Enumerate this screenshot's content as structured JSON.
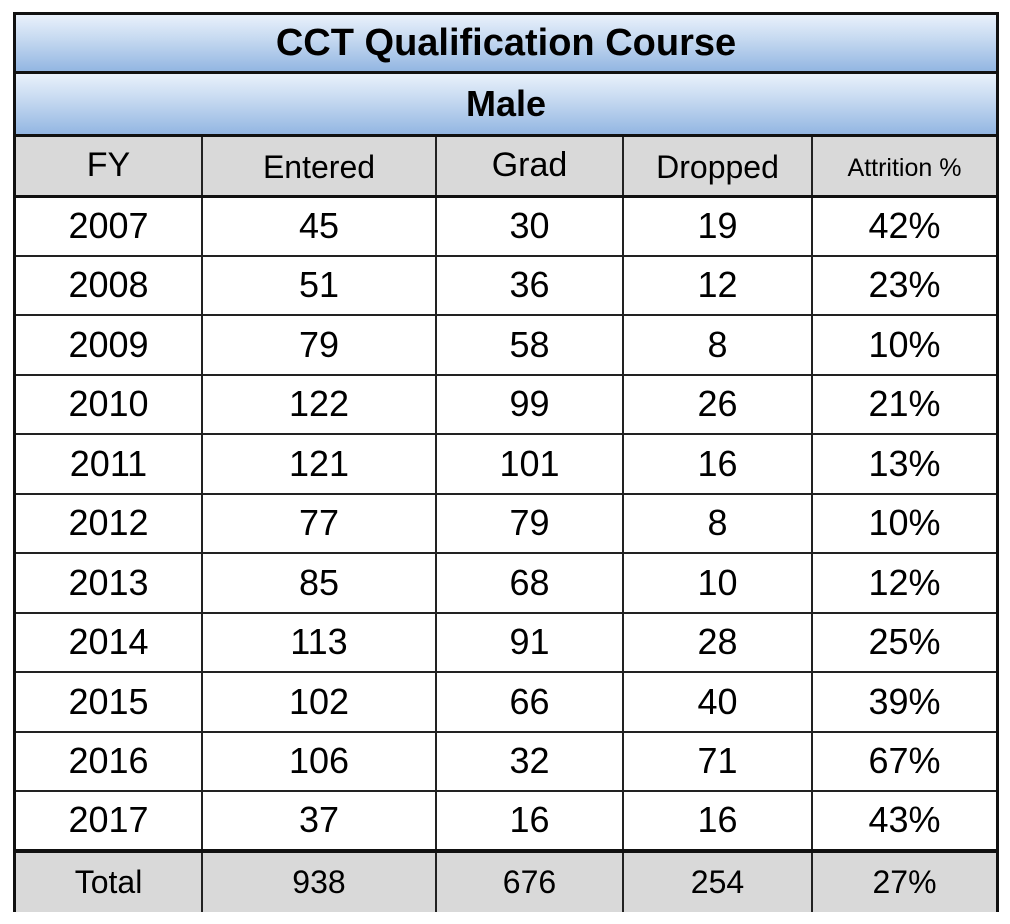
{
  "title": "CCT Qualification Course",
  "subtitle": "Male",
  "headers": {
    "fy": "FY",
    "entered": "Entered",
    "grad": "Grad",
    "dropped": "Dropped",
    "attrition": "Attrition %"
  },
  "rows": [
    {
      "fy": "2007",
      "entered": "45",
      "grad": "30",
      "dropped": "19",
      "attrition": "42%"
    },
    {
      "fy": "2008",
      "entered": "51",
      "grad": "36",
      "dropped": "12",
      "attrition": "23%"
    },
    {
      "fy": "2009",
      "entered": "79",
      "grad": "58",
      "dropped": "8",
      "attrition": "10%"
    },
    {
      "fy": "2010",
      "entered": "122",
      "grad": "99",
      "dropped": "26",
      "attrition": "21%"
    },
    {
      "fy": "2011",
      "entered": "121",
      "grad": "101",
      "dropped": "16",
      "attrition": "13%"
    },
    {
      "fy": "2012",
      "entered": "77",
      "grad": "79",
      "dropped": "8",
      "attrition": "10%"
    },
    {
      "fy": "2013",
      "entered": "85",
      "grad": "68",
      "dropped": "10",
      "attrition": "12%"
    },
    {
      "fy": "2014",
      "entered": "113",
      "grad": "91",
      "dropped": "28",
      "attrition": "25%"
    },
    {
      "fy": "2015",
      "entered": "102",
      "grad": "66",
      "dropped": "40",
      "attrition": "39%"
    },
    {
      "fy": "2016",
      "entered": "106",
      "grad": "32",
      "dropped": "71",
      "attrition": "67%"
    },
    {
      "fy": "2017",
      "entered": "37",
      "grad": "16",
      "dropped": "16",
      "attrition": "43%"
    }
  ],
  "total": {
    "label": "Total",
    "entered": "938",
    "grad": "676",
    "dropped": "254",
    "attrition": "27%"
  },
  "colors": {
    "header_band_top": "#e9f1fb",
    "header_band_bottom": "#93b6e2",
    "gray_fill": "#d9d9d9"
  }
}
